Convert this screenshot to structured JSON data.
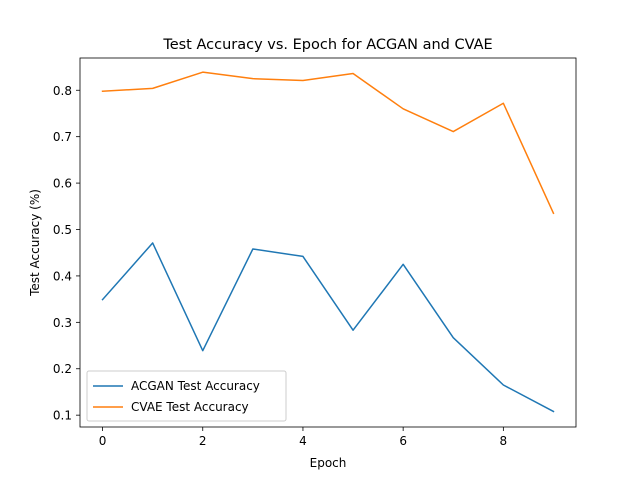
{
  "chart_data": {
    "type": "line",
    "title": "Test Accuracy vs. Epoch for ACGAN and CVAE",
    "xlabel": "Epoch",
    "ylabel": "Test Accuracy (%)",
    "x": [
      0,
      1,
      2,
      3,
      4,
      5,
      6,
      7,
      8,
      9
    ],
    "xlim": [
      -0.45,
      9.45
    ],
    "ylim": [
      0.0745,
      0.8695
    ],
    "xticks": [
      0,
      2,
      4,
      6,
      8
    ],
    "xtick_labels": [
      "0",
      "2",
      "4",
      "6",
      "8"
    ],
    "yticks": [
      0.1,
      0.2,
      0.3,
      0.4,
      0.5,
      0.6,
      0.7,
      0.8
    ],
    "ytick_labels": [
      "0.1",
      "0.2",
      "0.3",
      "0.4",
      "0.5",
      "0.6",
      "0.7",
      "0.8"
    ],
    "grid": false,
    "legend_position": "lower-left",
    "series": [
      {
        "name": "ACGAN Test Accuracy",
        "color": "#1f77b4",
        "values": [
          0.349,
          0.471,
          0.239,
          0.458,
          0.442,
          0.283,
          0.425,
          0.267,
          0.165,
          0.108
        ]
      },
      {
        "name": "CVAE Test Accuracy",
        "color": "#ff7f0e",
        "values": [
          0.798,
          0.804,
          0.839,
          0.825,
          0.821,
          0.836,
          0.76,
          0.711,
          0.772,
          0.535
        ]
      }
    ]
  }
}
